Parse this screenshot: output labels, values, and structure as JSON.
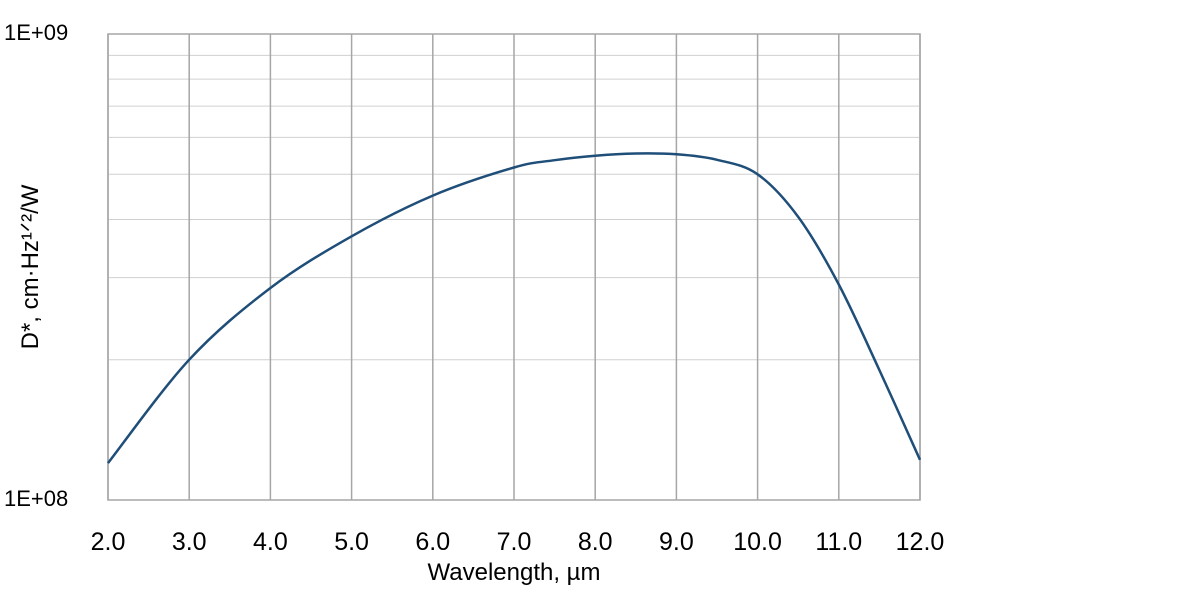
{
  "chart_data": {
    "type": "line",
    "title": "",
    "xlabel": "Wavelength, µm",
    "ylabel": "D*, cm·Hz¹ᐟ²/W",
    "xlim": [
      2.0,
      12.0
    ],
    "ylim": [
      100000000,
      1000000000
    ],
    "yscale": "log",
    "grid": true,
    "legend": "none",
    "x_ticks": [
      "2.0",
      "3.0",
      "4.0",
      "5.0",
      "6.0",
      "7.0",
      "8.0",
      "9.0",
      "10.0",
      "11.0",
      "12.0"
    ],
    "y_ticks": [
      "1E+08",
      "1E+09"
    ],
    "line_color": "#1f4e79",
    "grid_color": "#a6a6a6",
    "series": [
      {
        "x": [
          2.0,
          3.0,
          4.0,
          5.0,
          6.0,
          7.0,
          7.5,
          8.0,
          8.5,
          9.0,
          9.5,
          10.0,
          10.5,
          11.0,
          11.5,
          12.0
        ],
        "values": [
          120000000,
          200000000,
          285000000,
          368000000,
          450000000,
          517000000,
          536000000,
          548000000,
          554000000,
          552000000,
          537000000,
          500000000,
          405000000,
          290000000,
          190000000,
          122000000
        ]
      }
    ]
  }
}
